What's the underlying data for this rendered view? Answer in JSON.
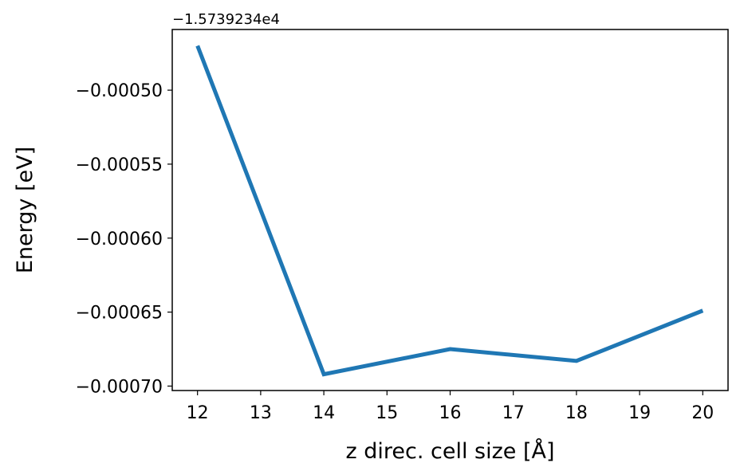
{
  "chart_data": {
    "type": "line",
    "title": "",
    "xlabel": "z direc. cell size [Å]",
    "ylabel": "Energy [eV]",
    "y_offset_label": "−1.5739234e4",
    "x": [
      12,
      14,
      16,
      18,
      20
    ],
    "series": [
      {
        "values": [
          -0.00047,
          -0.000692,
          -0.000675,
          -0.000683,
          -0.000649
        ],
        "color": "#1f77b4"
      }
    ],
    "x_ticks": [
      12,
      13,
      14,
      15,
      16,
      17,
      18,
      19,
      20
    ],
    "x_tick_labels": [
      "12",
      "13",
      "14",
      "15",
      "16",
      "17",
      "18",
      "19",
      "20"
    ],
    "y_ticks": [
      -0.0005,
      -0.00055,
      -0.0006,
      -0.00065,
      -0.0007
    ],
    "y_tick_labels": [
      "−0.00050",
      "−0.00055",
      "−0.00060",
      "−0.00065",
      "−0.00070"
    ],
    "xlim": [
      11.6,
      20.4
    ],
    "ylim": [
      -0.000703,
      -0.000459
    ],
    "grid": false,
    "legend": "none"
  }
}
